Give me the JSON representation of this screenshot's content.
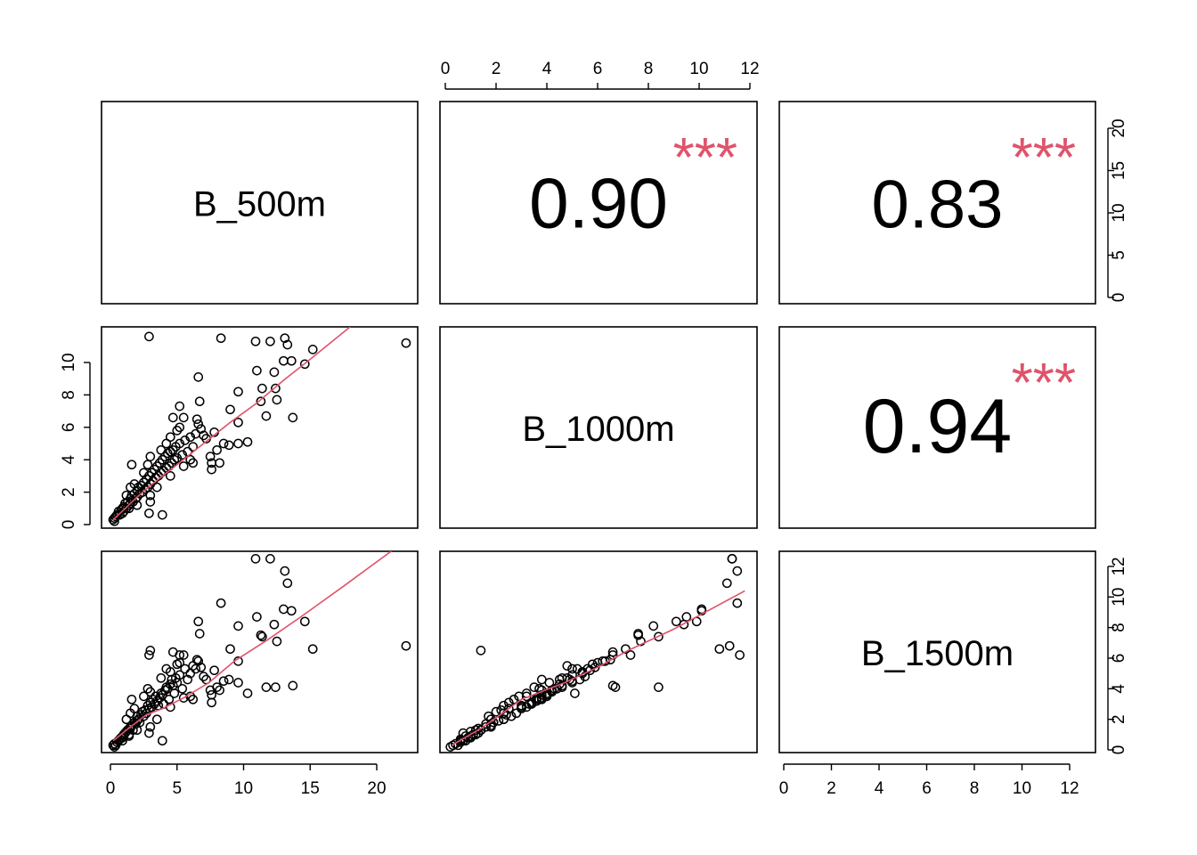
{
  "chart_data": {
    "type": "scatter",
    "layout": "pairs-matrix",
    "variables": [
      "B_500m",
      "B_1000m",
      "B_1500m"
    ],
    "point_color": "#000000",
    "smooth_color": "#DF536B",
    "star_color": "#DF536B",
    "axes": {
      "B_500m": {
        "ticks": [
          0,
          5,
          10,
          15,
          20
        ],
        "tick_labels": [
          "0",
          "5",
          "10",
          "15",
          "20"
        ],
        "range": [
          -0.7,
          23.1
        ]
      },
      "B_1000m": {
        "ticks": [
          0,
          2,
          4,
          6,
          8,
          10,
          12
        ],
        "tick_labels": [
          "0",
          "2",
          "4",
          "6",
          "8",
          "10",
          "12"
        ],
        "range": [
          -0.2,
          12.3
        ]
      },
      "B_1500m": {
        "ticks": [
          0,
          2,
          4,
          6,
          8,
          10,
          12
        ],
        "tick_labels": [
          "0",
          "2",
          "4",
          "6",
          "8",
          "10",
          "12"
        ],
        "range": [
          -0.2,
          12.9
        ]
      }
    },
    "left_axis_B_1000m": {
      "ticks": [
        0,
        2,
        4,
        6,
        8,
        10
      ],
      "tick_labels": [
        "0",
        "2",
        "4",
        "6",
        "8",
        "10"
      ]
    },
    "correlations": [
      {
        "pair": [
          "B_500m",
          "B_1000m"
        ],
        "value": "0.90",
        "stars": "***"
      },
      {
        "pair": [
          "B_500m",
          "B_1500m"
        ],
        "value": "0.83",
        "stars": "***"
      },
      {
        "pair": [
          "B_1000m",
          "B_1500m"
        ],
        "value": "0.94",
        "stars": "***"
      }
    ],
    "points_columns": [
      "B_500m",
      "B_1000m",
      "B_1500m"
    ],
    "points": [
      [
        0.2,
        0.3,
        0.3
      ],
      [
        0.3,
        0.4,
        0.4
      ],
      [
        0.4,
        0.5,
        0.3
      ],
      [
        0.5,
        0.6,
        0.5
      ],
      [
        0.6,
        0.8,
        0.6
      ],
      [
        0.7,
        0.6,
        0.7
      ],
      [
        0.8,
        0.9,
        0.8
      ],
      [
        0.9,
        1.0,
        0.8
      ],
      [
        1.0,
        1.1,
        1.0
      ],
      [
        1.0,
        0.8,
        0.9
      ],
      [
        1.1,
        1.3,
        1.1
      ],
      [
        1.2,
        1.0,
        1.2
      ],
      [
        1.3,
        1.4,
        1.3
      ],
      [
        1.4,
        1.2,
        1.0
      ],
      [
        1.5,
        1.6,
        1.5
      ],
      [
        1.5,
        1.3,
        1.4
      ],
      [
        1.6,
        1.8,
        1.6
      ],
      [
        1.7,
        1.4,
        1.3
      ],
      [
        1.8,
        1.9,
        1.8
      ],
      [
        1.9,
        1.6,
        1.7
      ],
      [
        2.0,
        2.1,
        1.9
      ],
      [
        2.0,
        1.7,
        2.2
      ],
      [
        2.1,
        2.3,
        2.0
      ],
      [
        2.2,
        1.9,
        1.8
      ],
      [
        2.3,
        2.4,
        2.3
      ],
      [
        2.4,
        2.0,
        2.5
      ],
      [
        2.5,
        2.6,
        2.2
      ],
      [
        2.6,
        2.2,
        2.6
      ],
      [
        2.7,
        2.8,
        2.4
      ],
      [
        2.8,
        2.3,
        2.9
      ],
      [
        2.9,
        3.0,
        2.7
      ],
      [
        3.0,
        2.5,
        3.1
      ],
      [
        3.1,
        3.2,
        2.8
      ],
      [
        3.2,
        2.7,
        3.3
      ],
      [
        3.3,
        3.4,
        3.0
      ],
      [
        3.4,
        2.9,
        3.5
      ],
      [
        3.5,
        3.6,
        3.2
      ],
      [
        3.6,
        3.0,
        2.9
      ],
      [
        3.7,
        3.8,
        3.4
      ],
      [
        3.8,
        3.2,
        3.7
      ],
      [
        3.9,
        4.0,
        3.6
      ],
      [
        4.0,
        3.3,
        3.0
      ],
      [
        4.1,
        4.2,
        3.9
      ],
      [
        4.2,
        3.5,
        4.1
      ],
      [
        4.3,
        4.4,
        4.0
      ],
      [
        4.4,
        3.6,
        3.3
      ],
      [
        4.5,
        4.5,
        4.3
      ],
      [
        4.6,
        3.8,
        4.6
      ],
      [
        4.7,
        4.6,
        4.2
      ],
      [
        4.8,
        4.0,
        3.7
      ],
      [
        4.9,
        4.8,
        4.7
      ],
      [
        5.0,
        4.1,
        4.4
      ],
      [
        5.2,
        5.0,
        4.9
      ],
      [
        5.4,
        4.3,
        4.0
      ],
      [
        5.6,
        5.2,
        5.3
      ],
      [
        5.8,
        4.5,
        4.6
      ],
      [
        6.0,
        5.4,
        5.0
      ],
      [
        6.2,
        4.8,
        5.5
      ],
      [
        6.4,
        5.6,
        5.3
      ],
      [
        6.6,
        6.2,
        5.8
      ],
      [
        6.8,
        5.9,
        5.4
      ],
      [
        7.0,
        5.5,
        4.8
      ],
      [
        3.0,
        4.2,
        3.8
      ],
      [
        2.5,
        3.2,
        3.5
      ],
      [
        1.8,
        2.5,
        2.7
      ],
      [
        4.5,
        5.4,
        5.1
      ],
      [
        5.0,
        5.8,
        5.6
      ],
      [
        5.5,
        6.6,
        6.2
      ],
      [
        6.5,
        6.5,
        5.9
      ],
      [
        7.2,
        5.3,
        4.6
      ],
      [
        7.5,
        4.2,
        3.9
      ],
      [
        2.0,
        1.2,
        1.3
      ],
      [
        3.5,
        2.3,
        2.0
      ],
      [
        4.5,
        3.0,
        2.8
      ],
      [
        5.5,
        3.6,
        3.4
      ],
      [
        6.0,
        4.0,
        3.5
      ],
      [
        3.0,
        1.8,
        1.5
      ],
      [
        1.2,
        1.8,
        2.0
      ],
      [
        2.8,
        3.7,
        4.0
      ],
      [
        3.8,
        4.6,
        4.7
      ],
      [
        4.2,
        5.0,
        5.3
      ],
      [
        5.2,
        6.0,
        5.7
      ],
      [
        1.5,
        2.3,
        2.4
      ],
      [
        6.2,
        3.8,
        3.3
      ],
      [
        7.8,
        5.7,
        5.2
      ],
      [
        8.0,
        4.6,
        4.1
      ],
      [
        8.5,
        5.0,
        4.5
      ],
      [
        0.3,
        0.2,
        0.2
      ],
      [
        0.9,
        0.7,
        0.6
      ],
      [
        1.4,
        1.0,
        0.9
      ],
      [
        2.9,
        11.6,
        6.2
      ],
      [
        8.3,
        11.5,
        9.6
      ],
      [
        22.2,
        11.2,
        6.8
      ],
      [
        10.9,
        11.3,
        12.5
      ],
      [
        12.0,
        11.3,
        12.5
      ],
      [
        13.1,
        11.5,
        11.7
      ],
      [
        13.3,
        11.1,
        10.9
      ],
      [
        15.2,
        10.8,
        6.6
      ],
      [
        13.0,
        10.1,
        9.2
      ],
      [
        13.6,
        10.1,
        9.1
      ],
      [
        14.6,
        9.9,
        8.4
      ],
      [
        11.0,
        9.5,
        8.7
      ],
      [
        12.3,
        9.4,
        8.2
      ],
      [
        6.6,
        9.1,
        8.4
      ],
      [
        11.4,
        8.4,
        7.4
      ],
      [
        9.6,
        8.2,
        8.1
      ],
      [
        11.3,
        7.6,
        7.5
      ],
      [
        12.5,
        7.7,
        7.1
      ],
      [
        11.7,
        6.7,
        4.1
      ],
      [
        13.7,
        6.6,
        4.2
      ],
      [
        5.2,
        7.3,
        6.2
      ],
      [
        9.0,
        7.1,
        6.6
      ],
      [
        4.7,
        6.6,
        6.4
      ],
      [
        9.6,
        6.3,
        5.8
      ],
      [
        10.3,
        5.1,
        3.7
      ],
      [
        9.6,
        5.0,
        4.4
      ],
      [
        8.9,
        4.9,
        4.6
      ],
      [
        7.6,
        3.8,
        3.6
      ],
      [
        8.2,
        3.8,
        3.9
      ],
      [
        7.6,
        3.4,
        3.1
      ],
      [
        1.6,
        3.7,
        3.3
      ],
      [
        2.9,
        0.7,
        1.1
      ],
      [
        3.9,
        0.6,
        0.6
      ],
      [
        12.4,
        8.4,
        4.1
      ],
      [
        6.7,
        7.6,
        7.6
      ],
      [
        3.0,
        1.4,
        6.5
      ]
    ],
    "smooth": [
      {
        "x_var": "B_500m",
        "y_var": "B_1000m",
        "points": [
          [
            0.2,
            0.3
          ],
          [
            1,
            0.9
          ],
          [
            2,
            1.7
          ],
          [
            3,
            2.4
          ],
          [
            5,
            3.7
          ],
          [
            7,
            5.0
          ],
          [
            9,
            6.3
          ],
          [
            11,
            7.5
          ],
          [
            13,
            8.9
          ],
          [
            15,
            10.2
          ],
          [
            18,
            12.2
          ]
        ]
      },
      {
        "x_var": "B_500m",
        "y_var": "B_1500m",
        "points": [
          [
            0.2,
            0.6
          ],
          [
            1.5,
            1.5
          ],
          [
            2.7,
            2.3
          ],
          [
            3.9,
            2.7
          ],
          [
            5.5,
            3.4
          ],
          [
            7.4,
            4.4
          ],
          [
            9.3,
            5.8
          ],
          [
            11.8,
            7.2
          ],
          [
            14.3,
            8.7
          ],
          [
            17.5,
            10.7
          ],
          [
            21.1,
            13.0
          ]
        ]
      },
      {
        "x_var": "B_1000m",
        "y_var": "B_1500m",
        "points": [
          [
            0.3,
            0.35
          ],
          [
            1.5,
            1.5
          ],
          [
            3.0,
            3.3
          ],
          [
            4.7,
            4.4
          ],
          [
            6.0,
            5.4
          ],
          [
            7.2,
            6.5
          ],
          [
            9.0,
            7.9
          ],
          [
            11.8,
            10.4
          ]
        ]
      }
    ]
  }
}
